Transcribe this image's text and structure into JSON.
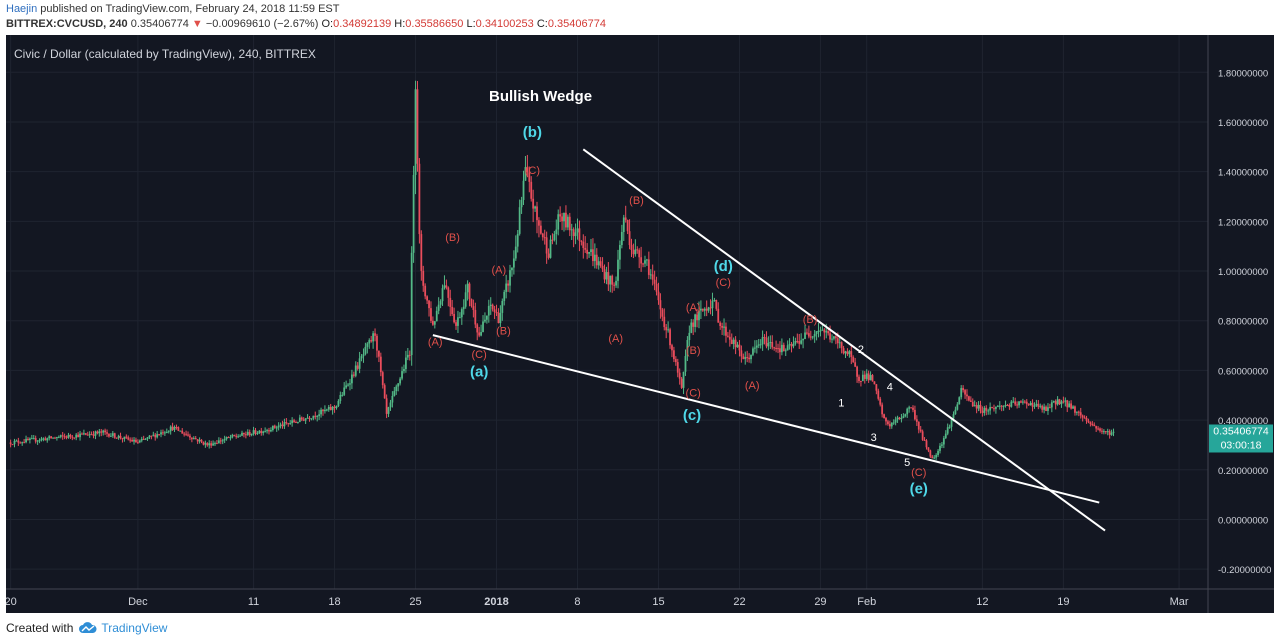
{
  "header": {
    "author": "Haejin",
    "published": "published on TradingView.com, February 24, 2018 11:59 EST",
    "symbol": "BITTREX:CVCUSD, 240",
    "last": "0.35406774",
    "change": "−0.00969610 (−2.67%)",
    "o_label": "O:",
    "o": "0.34892139",
    "h_label": "H:",
    "h": "0.35586650",
    "l_label": "L:",
    "l": "0.34100253",
    "c_label": "C:",
    "c": "0.35406774"
  },
  "footer": {
    "created_with": "Created with",
    "brand": "TradingView"
  },
  "colors": {
    "background": "#131722",
    "up": "#53b987",
    "down": "#eb4d5c",
    "wave_red": "#e0504a",
    "wave_cyan": "#4fd8e8",
    "price_tag": "#26a69a"
  },
  "chart_data": {
    "type": "candlestick",
    "title": "Civic / Dollar (calculated by TradingView), 240, BITTREX",
    "annotation_title": "Bullish Wedge",
    "ylim": [
      -0.28,
      1.95
    ],
    "y_ticks": [
      "1.80000000",
      "1.60000000",
      "1.40000000",
      "1.20000000",
      "1.00000000",
      "0.80000000",
      "0.60000000",
      "0.40000000",
      "0.20000000",
      "0.00000000",
      "-0.20000000"
    ],
    "x_ticks": [
      {
        "label": "20",
        "day": 0
      },
      {
        "label": "Dec",
        "day": 11
      },
      {
        "label": "11",
        "day": 21
      },
      {
        "label": "18",
        "day": 28
      },
      {
        "label": "25",
        "day": 35
      },
      {
        "label": "2018",
        "day": 42
      },
      {
        "label": "8",
        "day": 49
      },
      {
        "label": "15",
        "day": 56
      },
      {
        "label": "22",
        "day": 63
      },
      {
        "label": "29",
        "day": 70
      },
      {
        "label": "Feb",
        "day": 74
      },
      {
        "label": "12",
        "day": 84
      },
      {
        "label": "19",
        "day": 91
      },
      {
        "label": "Mar",
        "day": 101
      }
    ],
    "x_range_days": [
      -0.4,
      103.5
    ],
    "price_path": [
      [
        0,
        0.31
      ],
      [
        4,
        0.33
      ],
      [
        8,
        0.35
      ],
      [
        11,
        0.31
      ],
      [
        14,
        0.37
      ],
      [
        17,
        0.3
      ],
      [
        19,
        0.33
      ],
      [
        22,
        0.36
      ],
      [
        25,
        0.4
      ],
      [
        28,
        0.45
      ],
      [
        30,
        0.62
      ],
      [
        31.5,
        0.75
      ],
      [
        32.5,
        0.42
      ],
      [
        33.5,
        0.55
      ],
      [
        34.5,
        0.68
      ],
      [
        35,
        1.78
      ],
      [
        35.4,
        1.0
      ],
      [
        36.5,
        0.78
      ],
      [
        37.5,
        0.96
      ],
      [
        38.5,
        0.78
      ],
      [
        39.5,
        0.93
      ],
      [
        40.5,
        0.74
      ],
      [
        41.5,
        0.86
      ],
      [
        42.2,
        0.81
      ],
      [
        43.5,
        1.05
      ],
      [
        44.5,
        1.4
      ],
      [
        45.5,
        1.2
      ],
      [
        46.5,
        1.08
      ],
      [
        47.5,
        1.22
      ],
      [
        49,
        1.15
      ],
      [
        50.5,
        1.05
      ],
      [
        52.2,
        0.93
      ],
      [
        53,
        1.22
      ],
      [
        53.8,
        1.08
      ],
      [
        55,
        1.04
      ],
      [
        56.2,
        0.84
      ],
      [
        57,
        0.72
      ],
      [
        58,
        0.52
      ],
      [
        58.7,
        0.78
      ],
      [
        60,
        0.85
      ],
      [
        60.7,
        0.88
      ],
      [
        61.4,
        0.78
      ],
      [
        62.5,
        0.71
      ],
      [
        63.5,
        0.64
      ],
      [
        65,
        0.72
      ],
      [
        67,
        0.68
      ],
      [
        68.7,
        0.74
      ],
      [
        70,
        0.77
      ],
      [
        71.5,
        0.71
      ],
      [
        72.5,
        0.66
      ],
      [
        73.3,
        0.57
      ],
      [
        74,
        0.58
      ],
      [
        74.5,
        0.56
      ],
      [
        75.5,
        0.4
      ],
      [
        76,
        0.38
      ],
      [
        77.2,
        0.42
      ],
      [
        77.8,
        0.46
      ],
      [
        78.8,
        0.33
      ],
      [
        79.7,
        0.24
      ],
      [
        80.5,
        0.31
      ],
      [
        81.5,
        0.42
      ],
      [
        82.2,
        0.52
      ],
      [
        83,
        0.47
      ],
      [
        84,
        0.44
      ],
      [
        86,
        0.46
      ],
      [
        88,
        0.47
      ],
      [
        89.5,
        0.44
      ],
      [
        90.5,
        0.48
      ],
      [
        91.5,
        0.46
      ],
      [
        92.5,
        0.42
      ],
      [
        93.5,
        0.38
      ],
      [
        94.5,
        0.35
      ],
      [
        95.5,
        0.35
      ]
    ],
    "trendlines": [
      {
        "name": "wedge-upper",
        "from": [
          49.5,
          1.49
        ],
        "to": [
          94.6,
          -0.045
        ]
      },
      {
        "name": "wedge-lower",
        "from": [
          36.5,
          0.742
        ],
        "to": [
          94.1,
          0.068
        ]
      }
    ],
    "wave_labels": [
      {
        "text": "(A)",
        "day": 36.7,
        "price": 0.7,
        "kind": "red"
      },
      {
        "text": "(B)",
        "day": 38.2,
        "price": 1.12,
        "kind": "red"
      },
      {
        "text": "(C)",
        "day": 40.5,
        "price": 0.65,
        "kind": "red"
      },
      {
        "text": "(A)",
        "day": 42.2,
        "price": 0.99,
        "kind": "red"
      },
      {
        "text": "(B)",
        "day": 42.6,
        "price": 0.745,
        "kind": "red"
      },
      {
        "text": "(a)",
        "day": 40.5,
        "price": 0.575,
        "kind": "cyan"
      },
      {
        "text": "(b)",
        "day": 45.1,
        "price": 1.54,
        "kind": "cyan"
      },
      {
        "text": "(C)",
        "day": 45.1,
        "price": 1.39,
        "kind": "red"
      },
      {
        "text": "(A)",
        "day": 52.3,
        "price": 0.715,
        "kind": "red"
      },
      {
        "text": "(B)",
        "day": 54.1,
        "price": 1.27,
        "kind": "red"
      },
      {
        "text": "(A)",
        "day": 59.0,
        "price": 0.84,
        "kind": "red"
      },
      {
        "text": "(B)",
        "day": 59.0,
        "price": 0.665,
        "kind": "red"
      },
      {
        "text": "(C)",
        "day": 59.0,
        "price": 0.495,
        "kind": "red"
      },
      {
        "text": "(c)",
        "day": 58.9,
        "price": 0.4,
        "kind": "cyan"
      },
      {
        "text": "(d)",
        "day": 61.6,
        "price": 1.0,
        "kind": "cyan"
      },
      {
        "text": "(C)",
        "day": 61.6,
        "price": 0.94,
        "kind": "red"
      },
      {
        "text": "(A)",
        "day": 64.1,
        "price": 0.525,
        "kind": "red"
      },
      {
        "text": "(B)",
        "day": 69.1,
        "price": 0.79,
        "kind": "red"
      },
      {
        "text": "1",
        "day": 71.8,
        "price": 0.455,
        "kind": "white"
      },
      {
        "text": "2",
        "day": 73.5,
        "price": 0.67,
        "kind": "white"
      },
      {
        "text": "3",
        "day": 74.6,
        "price": 0.315,
        "kind": "white"
      },
      {
        "text": "4",
        "day": 76.0,
        "price": 0.52,
        "kind": "white"
      },
      {
        "text": "5",
        "day": 77.5,
        "price": 0.215,
        "kind": "white"
      },
      {
        "text": "(C)",
        "day": 78.5,
        "price": 0.175,
        "kind": "red"
      },
      {
        "text": "(e)",
        "day": 78.5,
        "price": 0.105,
        "kind": "cyan"
      }
    ],
    "last_price_label": "0.35406774",
    "countdown_label": "03:00:18",
    "last_price": 0.354
  }
}
